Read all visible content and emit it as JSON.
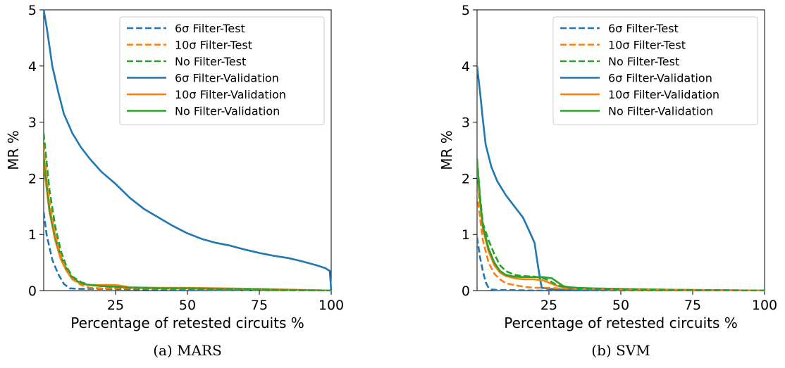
{
  "chart_data": [
    {
      "type": "line",
      "title": "",
      "caption": "(a) MARS",
      "xlabel": "Percentage of retested circuits %",
      "ylabel": "MR %",
      "xlim": [
        0,
        100
      ],
      "ylim": [
        0,
        5
      ],
      "xticks": [
        25,
        50,
        75,
        100
      ],
      "yticks": [
        0,
        1,
        2,
        3,
        4,
        5
      ],
      "grid": false,
      "legend_position": "top-right",
      "series": [
        {
          "name": "6σ Filter-Test",
          "color": "#1f77b4",
          "style": "dashed",
          "x": [
            0,
            1,
            3,
            5,
            7,
            9,
            12,
            20,
            40,
            100
          ],
          "y": [
            1.4,
            1.0,
            0.55,
            0.3,
            0.12,
            0.04,
            0.03,
            0.03,
            0.02,
            0.0
          ]
        },
        {
          "name": "10σ Filter-Test",
          "color": "#ff7f0e",
          "style": "dashed",
          "x": [
            0,
            2,
            4,
            6,
            8,
            10,
            13,
            16,
            20,
            30,
            50,
            75,
            100
          ],
          "y": [
            2.6,
            1.6,
            1.0,
            0.6,
            0.35,
            0.2,
            0.1,
            0.05,
            0.04,
            0.04,
            0.03,
            0.02,
            0.0
          ]
        },
        {
          "name": "No Filter-Test",
          "color": "#2ca02c",
          "style": "dashed",
          "x": [
            0,
            2,
            4,
            6,
            8,
            10,
            13,
            16,
            20,
            30,
            50,
            75,
            100
          ],
          "y": [
            2.8,
            1.8,
            1.15,
            0.7,
            0.42,
            0.25,
            0.15,
            0.1,
            0.08,
            0.05,
            0.03,
            0.02,
            0.0
          ]
        },
        {
          "name": "6σ Filter-Validation",
          "color": "#1f77b4",
          "style": "solid",
          "x": [
            0,
            1,
            2,
            3,
            5,
            7,
            10,
            13,
            16,
            20,
            25,
            30,
            35,
            40,
            45,
            50,
            55,
            60,
            65,
            70,
            75,
            80,
            85,
            90,
            95,
            98,
            99.5,
            100
          ],
          "y": [
            5.0,
            4.7,
            4.35,
            4.0,
            3.55,
            3.15,
            2.8,
            2.55,
            2.35,
            2.12,
            1.9,
            1.65,
            1.45,
            1.3,
            1.15,
            1.02,
            0.92,
            0.85,
            0.8,
            0.73,
            0.67,
            0.62,
            0.58,
            0.52,
            0.45,
            0.4,
            0.35,
            0.0
          ]
        },
        {
          "name": "10σ Filter-Validation",
          "color": "#ff7f0e",
          "style": "solid",
          "x": [
            0,
            2,
            4,
            6,
            8,
            10,
            13,
            16,
            20,
            25,
            30,
            40,
            50,
            75,
            100
          ],
          "y": [
            2.25,
            1.4,
            0.9,
            0.55,
            0.35,
            0.2,
            0.12,
            0.1,
            0.1,
            0.1,
            0.06,
            0.05,
            0.05,
            0.03,
            0.0
          ]
        },
        {
          "name": "No Filter-Validation",
          "color": "#2ca02c",
          "style": "solid",
          "x": [
            0,
            2,
            4,
            6,
            8,
            10,
            13,
            16,
            20,
            25,
            30,
            40,
            50,
            75,
            100
          ],
          "y": [
            2.4,
            1.45,
            0.95,
            0.6,
            0.38,
            0.22,
            0.13,
            0.1,
            0.08,
            0.07,
            0.05,
            0.04,
            0.04,
            0.02,
            0.0
          ]
        }
      ]
    },
    {
      "type": "line",
      "title": "",
      "caption": "(b) SVM",
      "xlabel": "Percentage of retested circuits %",
      "ylabel": "MR %",
      "xlim": [
        0,
        100
      ],
      "ylim": [
        0,
        5
      ],
      "xticks": [
        25,
        50,
        75,
        100
      ],
      "yticks": [
        0,
        1,
        2,
        3,
        4,
        5
      ],
      "grid": false,
      "legend_position": "top-right",
      "series": [
        {
          "name": "6σ Filter-Test",
          "color": "#1f77b4",
          "style": "dashed",
          "x": [
            0,
            1,
            2,
            3,
            4,
            5,
            7,
            10,
            20,
            100
          ],
          "y": [
            0.95,
            0.6,
            0.35,
            0.15,
            0.05,
            0.02,
            0.01,
            0.01,
            0.0,
            0.0
          ]
        },
        {
          "name": "10σ Filter-Test",
          "color": "#ff7f0e",
          "style": "dashed",
          "x": [
            0,
            1,
            2,
            4,
            6,
            8,
            10,
            13,
            16,
            20,
            24,
            28,
            35,
            50,
            80,
            100
          ],
          "y": [
            1.75,
            1.3,
            0.9,
            0.5,
            0.3,
            0.2,
            0.13,
            0.1,
            0.07,
            0.05,
            0.05,
            0.04,
            0.03,
            0.02,
            0.01,
            0.0
          ]
        },
        {
          "name": "No Filter-Test",
          "color": "#2ca02c",
          "style": "dashed",
          "x": [
            0,
            1,
            2,
            4,
            6,
            8,
            10,
            13,
            16,
            20,
            23,
            25,
            27,
            29,
            31,
            35,
            40,
            50,
            75,
            100
          ],
          "y": [
            2.35,
            1.7,
            1.2,
            0.9,
            0.65,
            0.45,
            0.35,
            0.28,
            0.26,
            0.25,
            0.22,
            0.18,
            0.12,
            0.08,
            0.06,
            0.04,
            0.03,
            0.02,
            0.01,
            0.0
          ]
        },
        {
          "name": "6σ Filter-Validation",
          "color": "#1f77b4",
          "style": "solid",
          "x": [
            0,
            1,
            2,
            3,
            5,
            7,
            10,
            13,
            16,
            18,
            20,
            21,
            22,
            22.5,
            25,
            30,
            50,
            100
          ],
          "y": [
            4.0,
            3.55,
            3.05,
            2.6,
            2.2,
            1.95,
            1.7,
            1.5,
            1.3,
            1.08,
            0.85,
            0.5,
            0.18,
            0.05,
            0.03,
            0.02,
            0.01,
            0.0
          ]
        },
        {
          "name": "10σ Filter-Validation",
          "color": "#ff7f0e",
          "style": "solid",
          "x": [
            0,
            1,
            2,
            4,
            6,
            8,
            10,
            13,
            16,
            20,
            23,
            25,
            27,
            29,
            31,
            35,
            40,
            50,
            75,
            100
          ],
          "y": [
            2.2,
            1.6,
            1.1,
            0.7,
            0.45,
            0.32,
            0.26,
            0.22,
            0.2,
            0.2,
            0.18,
            0.14,
            0.1,
            0.07,
            0.05,
            0.04,
            0.03,
            0.02,
            0.01,
            0.0
          ]
        },
        {
          "name": "No Filter-Validation",
          "color": "#2ca02c",
          "style": "solid",
          "x": [
            0,
            1,
            2,
            4,
            6,
            8,
            10,
            13,
            16,
            20,
            23,
            26,
            28,
            30,
            32,
            35,
            40,
            50,
            75,
            100
          ],
          "y": [
            2.3,
            1.65,
            1.15,
            0.75,
            0.5,
            0.35,
            0.28,
            0.25,
            0.24,
            0.24,
            0.24,
            0.22,
            0.15,
            0.08,
            0.06,
            0.05,
            0.04,
            0.03,
            0.01,
            0.0
          ]
        }
      ]
    }
  ]
}
